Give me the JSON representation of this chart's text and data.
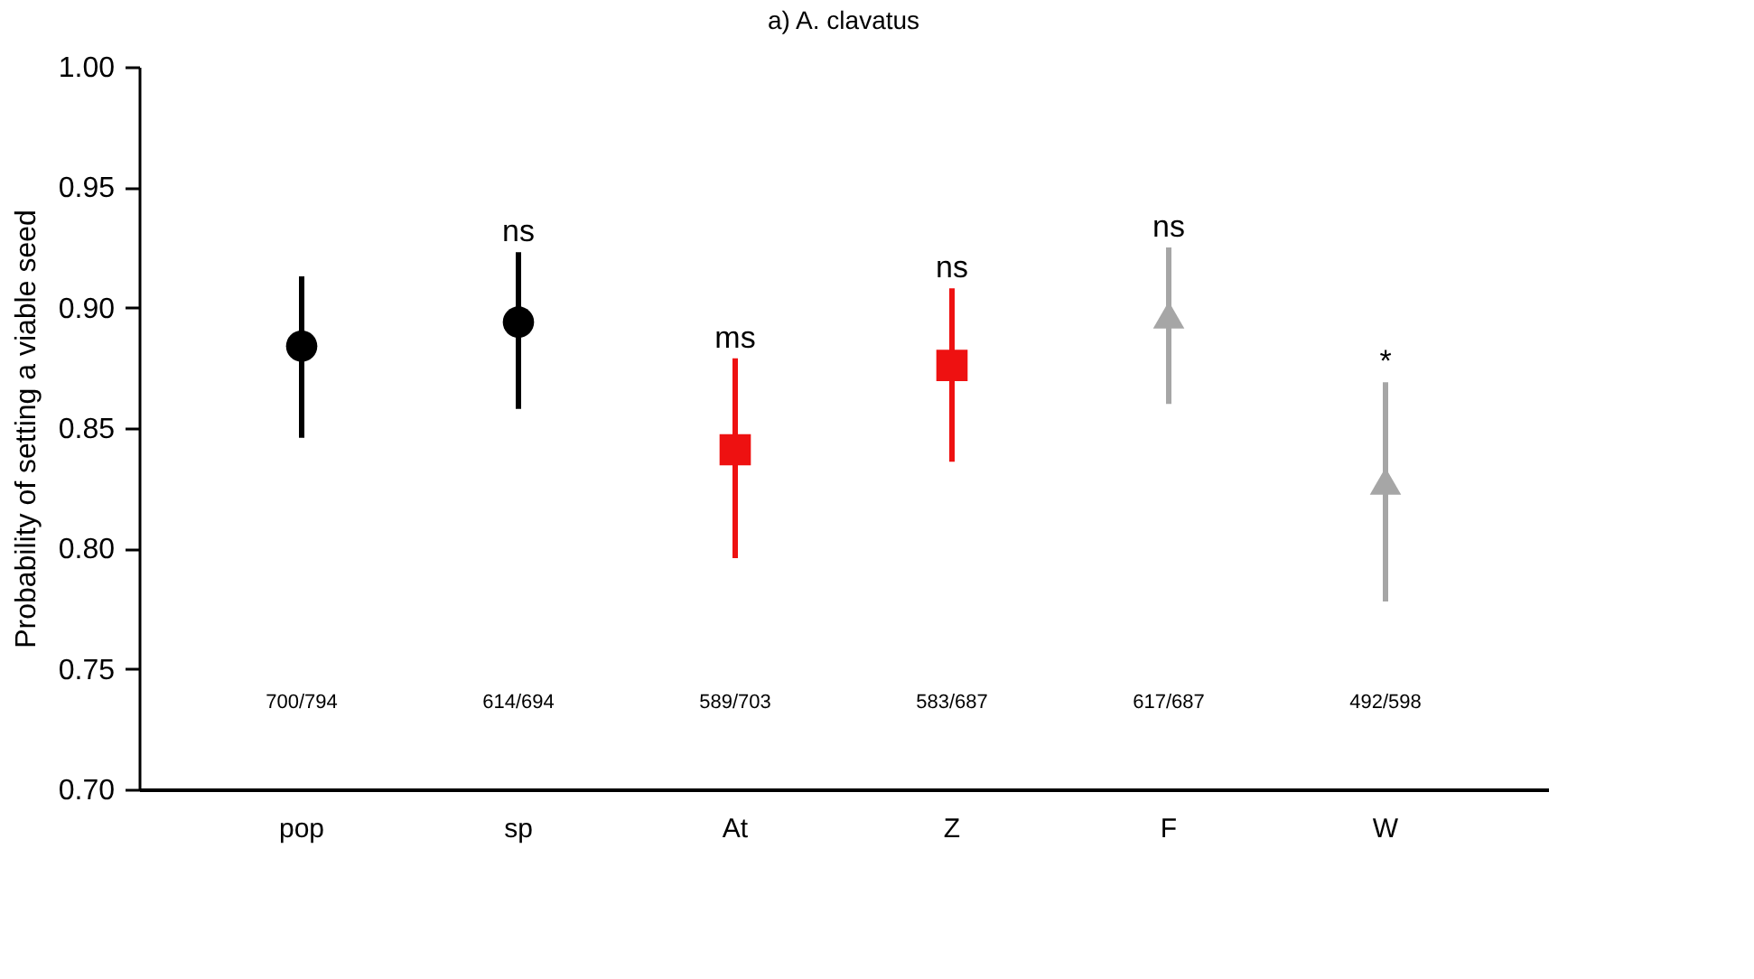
{
  "chart_data": {
    "type": "scatter",
    "title": "a) A. clavatus",
    "ylabel": "Probability of setting a viable seed",
    "categories": [
      "pop",
      "sp",
      "At",
      "Z",
      "F",
      "W"
    ],
    "ylim": [
      0.7,
      1.0
    ],
    "yticks": [
      {
        "value": 0.7,
        "label": "0.70"
      },
      0.75,
      {
        "value": 0.8,
        "label": "0.80"
      },
      0.85,
      {
        "value": 0.9,
        "label": "0.90"
      },
      0.95,
      {
        "value": 1.0,
        "label": "1.00"
      }
    ],
    "grid": false,
    "series": [
      {
        "color": "#000000",
        "marker": "circle",
        "values": [
          0.884,
          0.894,
          null,
          null,
          null,
          null
        ],
        "errors": [
          [
            0.846,
            0.913
          ],
          [
            0.858,
            0.923
          ],
          null,
          null,
          null,
          null
        ],
        "value_labels": [
          null,
          "ns",
          null,
          null,
          null,
          null
        ]
      },
      {
        "color": "#ee1111",
        "marker": "square",
        "values": [
          null,
          null,
          0.841,
          0.876,
          null,
          null
        ],
        "errors": [
          null,
          null,
          [
            0.796,
            0.879
          ],
          [
            0.836,
            0.908
          ],
          null,
          null
        ],
        "value_labels": [
          null,
          null,
          "ms",
          "ns",
          null,
          null
        ]
      },
      {
        "color": "#a6a6a6",
        "marker": "triangle",
        "values": [
          null,
          null,
          null,
          null,
          0.897,
          0.828
        ],
        "errors": [
          null,
          null,
          null,
          null,
          [
            0.86,
            0.925
          ],
          [
            0.778,
            0.869
          ]
        ],
        "value_labels": [
          null,
          null,
          null,
          null,
          "ns",
          "*"
        ]
      }
    ],
    "annotations": [
      "700/794",
      "614/694",
      "589/703",
      "583/687",
      "617/687",
      "492/598"
    ]
  }
}
